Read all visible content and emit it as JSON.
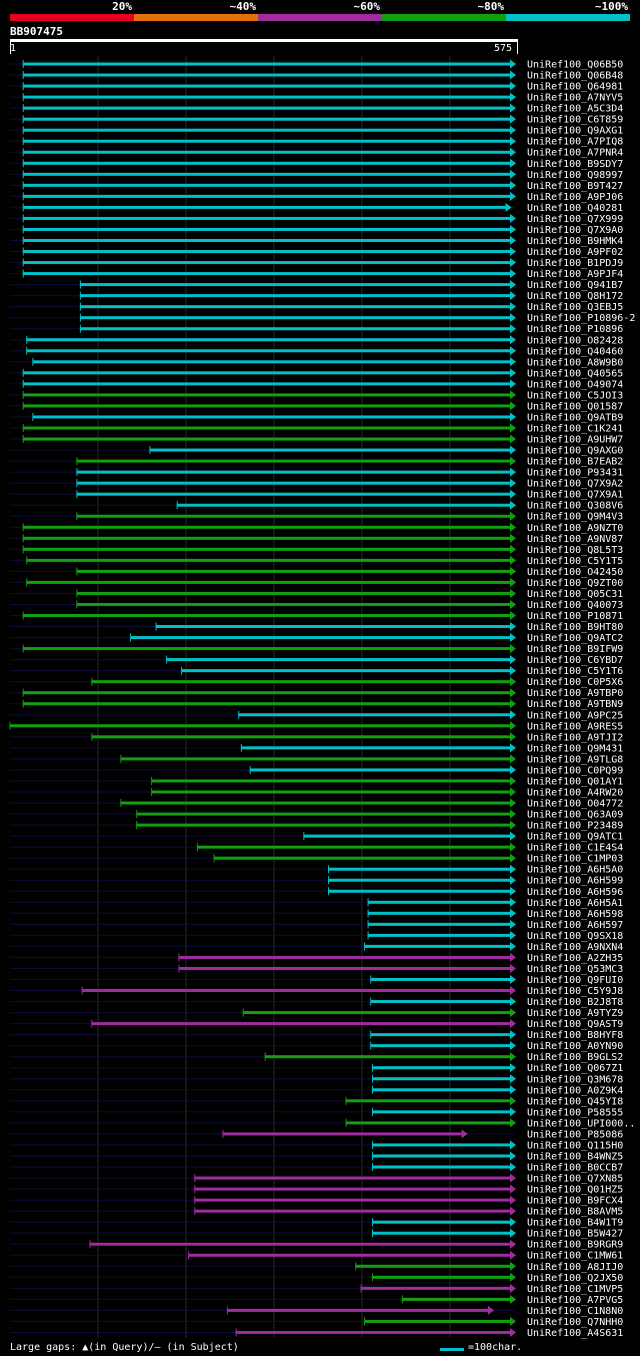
{
  "legend": [
    {
      "label": "20%",
      "color": "#e8001c"
    },
    {
      "label": "~40%",
      "color": "#e07010"
    },
    {
      "label": "~60%",
      "color": "#a02ca0"
    },
    {
      "label": "~80%",
      "color": "#10a010"
    },
    {
      "label": "~100%",
      "color": "#00c0c8"
    }
  ],
  "query": {
    "name": "BB907475",
    "start": "1",
    "end": "575",
    "length": 575
  },
  "footer": {
    "gaps": "Large gaps: ▲(in Query)/— (in Subject)",
    "scale": "=100char."
  },
  "colors": {
    "teal": "#00c0c8",
    "green": "#10a010",
    "purple": "#a02ca0",
    "dim": "#0c0c3a"
  },
  "hits": [
    {
      "name": "UniRef100_Q06B50",
      "start": 16,
      "end": 575,
      "color": "teal"
    },
    {
      "name": "UniRef100_Q06B48",
      "start": 16,
      "end": 575,
      "color": "teal"
    },
    {
      "name": "UniRef100_Q64981",
      "start": 16,
      "end": 575,
      "color": "teal"
    },
    {
      "name": "UniRef100_A7NYV5",
      "start": 16,
      "end": 575,
      "color": "teal"
    },
    {
      "name": "UniRef100_A5C3D4",
      "start": 16,
      "end": 575,
      "color": "teal"
    },
    {
      "name": "UniRef100_C6T859",
      "start": 16,
      "end": 575,
      "color": "teal"
    },
    {
      "name": "UniRef100_Q9AXG1",
      "start": 16,
      "end": 575,
      "color": "teal"
    },
    {
      "name": "UniRef100_A7PIQ8",
      "start": 16,
      "end": 575,
      "color": "teal"
    },
    {
      "name": "UniRef100_A7PNR4",
      "start": 16,
      "end": 575,
      "color": "teal"
    },
    {
      "name": "UniRef100_B9SDY7",
      "start": 16,
      "end": 575,
      "color": "teal"
    },
    {
      "name": "UniRef100_Q98997",
      "start": 16,
      "end": 575,
      "color": "teal"
    },
    {
      "name": "UniRef100_B9T427",
      "start": 16,
      "end": 575,
      "color": "teal"
    },
    {
      "name": "UniRef100_A9PJ06",
      "start": 16,
      "end": 575,
      "color": "teal"
    },
    {
      "name": "UniRef100_Q40281",
      "start": 16,
      "end": 570,
      "color": "teal"
    },
    {
      "name": "UniRef100_Q7X999",
      "start": 16,
      "end": 575,
      "color": "teal"
    },
    {
      "name": "UniRef100_Q7X9A0",
      "start": 16,
      "end": 575,
      "color": "teal"
    },
    {
      "name": "UniRef100_B9HMK4",
      "start": 16,
      "end": 575,
      "color": "teal"
    },
    {
      "name": "UniRef100_A9PF02",
      "start": 16,
      "end": 575,
      "color": "teal"
    },
    {
      "name": "UniRef100_B1PDJ9",
      "start": 16,
      "end": 575,
      "color": "teal"
    },
    {
      "name": "UniRef100_A9PJF4",
      "start": 16,
      "end": 575,
      "color": "teal"
    },
    {
      "name": "UniRef100_Q941B7",
      "start": 81,
      "end": 575,
      "color": "teal"
    },
    {
      "name": "UniRef100_Q8H172",
      "start": 81,
      "end": 575,
      "color": "teal"
    },
    {
      "name": "UniRef100_Q3EBJ5",
      "start": 81,
      "end": 575,
      "color": "teal"
    },
    {
      "name": "UniRef100_P10896-2",
      "start": 81,
      "end": 575,
      "color": "teal"
    },
    {
      "name": "UniRef100_P10896",
      "start": 81,
      "end": 575,
      "color": "teal"
    },
    {
      "name": "UniRef100_O82428",
      "start": 20,
      "end": 575,
      "color": "teal"
    },
    {
      "name": "UniRef100_Q40460",
      "start": 20,
      "end": 575,
      "color": "teal"
    },
    {
      "name": "UniRef100_A8W9B0",
      "start": 27,
      "end": 575,
      "color": "teal"
    },
    {
      "name": "UniRef100_Q40565",
      "start": 16,
      "end": 575,
      "color": "teal"
    },
    {
      "name": "UniRef100_O49074",
      "start": 16,
      "end": 575,
      "color": "teal"
    },
    {
      "name": "UniRef100_C5JOI3",
      "start": 16,
      "end": 575,
      "color": "green"
    },
    {
      "name": "UniRef100_Q01587",
      "start": 16,
      "end": 575,
      "color": "green"
    },
    {
      "name": "UniRef100_Q9ATB9",
      "start": 27,
      "end": 575,
      "color": "teal"
    },
    {
      "name": "UniRef100_C1K241",
      "start": 16,
      "end": 575,
      "color": "green"
    },
    {
      "name": "UniRef100_A9UHW7",
      "start": 16,
      "end": 575,
      "color": "green"
    },
    {
      "name": "UniRef100_Q9AXG0",
      "start": 160,
      "end": 575,
      "color": "teal"
    },
    {
      "name": "UniRef100_B7EAB2",
      "start": 77,
      "end": 575,
      "color": "green"
    },
    {
      "name": "UniRef100_P93431",
      "start": 77,
      "end": 575,
      "color": "teal"
    },
    {
      "name": "UniRef100_Q7X9A2",
      "start": 77,
      "end": 575,
      "color": "teal"
    },
    {
      "name": "UniRef100_Q7X9A1",
      "start": 77,
      "end": 575,
      "color": "teal"
    },
    {
      "name": "UniRef100_Q308V6",
      "start": 191,
      "end": 575,
      "color": "teal"
    },
    {
      "name": "UniRef100_Q9M4V3",
      "start": 77,
      "end": 575,
      "color": "green"
    },
    {
      "name": "UniRef100_A9NZT0",
      "start": 16,
      "end": 575,
      "color": "green"
    },
    {
      "name": "UniRef100_A9NV87",
      "start": 16,
      "end": 575,
      "color": "green"
    },
    {
      "name": "UniRef100_Q8L5T3",
      "start": 16,
      "end": 575,
      "color": "green"
    },
    {
      "name": "UniRef100_C5Y1T5",
      "start": 20,
      "end": 575,
      "color": "green"
    },
    {
      "name": "UniRef100_O42450",
      "start": 77,
      "end": 575,
      "color": "green"
    },
    {
      "name": "UniRef100_Q9ZT00",
      "start": 20,
      "end": 575,
      "color": "green"
    },
    {
      "name": "UniRef100_Q05C31",
      "start": 77,
      "end": 575,
      "color": "green"
    },
    {
      "name": "UniRef100_Q40073",
      "start": 77,
      "end": 575,
      "color": "green"
    },
    {
      "name": "UniRef100_P10871",
      "start": 16,
      "end": 575,
      "color": "green"
    },
    {
      "name": "UniRef100_B9HT80",
      "start": 167,
      "end": 575,
      "color": "teal"
    },
    {
      "name": "UniRef100_Q9ATC2",
      "start": 138,
      "end": 575,
      "color": "teal"
    },
    {
      "name": "UniRef100_B9IFW9",
      "start": 16,
      "end": 575,
      "color": "green"
    },
    {
      "name": "UniRef100_C6YBD7",
      "start": 179,
      "end": 575,
      "color": "teal"
    },
    {
      "name": "UniRef100_C5Y1T6",
      "start": 196,
      "end": 575,
      "color": "teal"
    },
    {
      "name": "UniRef100_C0P5X6",
      "start": 94,
      "end": 575,
      "color": "green"
    },
    {
      "name": "UniRef100_A9TBP0",
      "start": 16,
      "end": 575,
      "color": "green"
    },
    {
      "name": "UniRef100_A9TBN9",
      "start": 16,
      "end": 575,
      "color": "green"
    },
    {
      "name": "UniRef100_A9PC25",
      "start": 261,
      "end": 575,
      "color": "teal"
    },
    {
      "name": "UniRef100_A9RES5",
      "start": 1,
      "end": 575,
      "color": "green"
    },
    {
      "name": "UniRef100_A9TJI2",
      "start": 94,
      "end": 575,
      "color": "green"
    },
    {
      "name": "UniRef100_Q9M431",
      "start": 264,
      "end": 575,
      "color": "teal"
    },
    {
      "name": "UniRef100_A9TLG8",
      "start": 127,
      "end": 575,
      "color": "green"
    },
    {
      "name": "UniRef100_C0PQ99",
      "start": 274,
      "end": 575,
      "color": "teal"
    },
    {
      "name": "UniRef100_Q01AY1",
      "start": 162,
      "end": 575,
      "color": "green"
    },
    {
      "name": "UniRef100_A4RW20",
      "start": 162,
      "end": 575,
      "color": "green"
    },
    {
      "name": "UniRef100_O04772",
      "start": 127,
      "end": 575,
      "color": "green"
    },
    {
      "name": "UniRef100_Q63A09",
      "start": 145,
      "end": 575,
      "color": "green"
    },
    {
      "name": "UniRef100_P23489",
      "start": 145,
      "end": 575,
      "color": "green"
    },
    {
      "name": "UniRef100_Q9ATC1",
      "start": 335,
      "end": 575,
      "color": "teal"
    },
    {
      "name": "UniRef100_C1E4S4",
      "start": 214,
      "end": 575,
      "color": "green"
    },
    {
      "name": "UniRef100_C1MP03",
      "start": 233,
      "end": 575,
      "color": "green"
    },
    {
      "name": "UniRef100_A6H5A0",
      "start": 363,
      "end": 575,
      "color": "teal"
    },
    {
      "name": "UniRef100_A6H599",
      "start": 363,
      "end": 575,
      "color": "teal"
    },
    {
      "name": "UniRef100_A6H596",
      "start": 363,
      "end": 575,
      "color": "teal"
    },
    {
      "name": "UniRef100_A6H5A1",
      "start": 408,
      "end": 575,
      "color": "teal"
    },
    {
      "name": "UniRef100_A6H598",
      "start": 408,
      "end": 575,
      "color": "teal"
    },
    {
      "name": "UniRef100_A6H597",
      "start": 408,
      "end": 575,
      "color": "teal"
    },
    {
      "name": "UniRef100_Q9SX18",
      "start": 408,
      "end": 575,
      "color": "teal"
    },
    {
      "name": "UniRef100_A9NXN4",
      "start": 404,
      "end": 575,
      "color": "teal"
    },
    {
      "name": "UniRef100_A2ZH35",
      "start": 193,
      "end": 575,
      "color": "purple"
    },
    {
      "name": "UniRef100_Q53MC3",
      "start": 193,
      "end": 575,
      "color": "purple"
    },
    {
      "name": "UniRef100_Q9FUI0",
      "start": 411,
      "end": 575,
      "color": "teal"
    },
    {
      "name": "UniRef100_C5Y9J8",
      "start": 83,
      "end": 575,
      "color": "purple"
    },
    {
      "name": "UniRef100_B2J8T8",
      "start": 411,
      "end": 575,
      "color": "teal"
    },
    {
      "name": "UniRef100_A9TYZ9",
      "start": 266,
      "end": 575,
      "color": "green"
    },
    {
      "name": "UniRef100_Q9AST9",
      "start": 94,
      "end": 575,
      "color": "purple"
    },
    {
      "name": "UniRef100_B8HYF8",
      "start": 411,
      "end": 575,
      "color": "teal"
    },
    {
      "name": "UniRef100_A0YN90",
      "start": 411,
      "end": 575,
      "color": "teal"
    },
    {
      "name": "UniRef100_B9GLS2",
      "start": 291,
      "end": 575,
      "color": "green"
    },
    {
      "name": "UniRef100_Q067Z1",
      "start": 413,
      "end": 575,
      "color": "teal"
    },
    {
      "name": "UniRef100_Q3M678",
      "start": 413,
      "end": 575,
      "color": "teal"
    },
    {
      "name": "UniRef100_A0Z9K4",
      "start": 413,
      "end": 575,
      "color": "teal"
    },
    {
      "name": "UniRef100_Q45YI8",
      "start": 383,
      "end": 575,
      "color": "green"
    },
    {
      "name": "UniRef100_P58555",
      "start": 413,
      "end": 575,
      "color": "teal"
    },
    {
      "name": "UniRef100_UPI000..",
      "start": 383,
      "end": 575,
      "color": "green"
    },
    {
      "name": "UniRef100_P85086",
      "start": 243,
      "end": 520,
      "color": "purple"
    },
    {
      "name": "UniRef100_Q115H0",
      "start": 413,
      "end": 575,
      "color": "teal"
    },
    {
      "name": "UniRef100_B4WNZ5",
      "start": 413,
      "end": 575,
      "color": "teal"
    },
    {
      "name": "UniRef100_B0CCB7",
      "start": 413,
      "end": 575,
      "color": "teal"
    },
    {
      "name": "UniRef100_Q7XN85",
      "start": 211,
      "end": 575,
      "color": "purple"
    },
    {
      "name": "UniRef100_Q01HZ5",
      "start": 211,
      "end": 575,
      "color": "purple"
    },
    {
      "name": "UniRef100_B9FCX4",
      "start": 211,
      "end": 575,
      "color": "purple"
    },
    {
      "name": "UniRef100_B8AVM5",
      "start": 211,
      "end": 575,
      "color": "purple"
    },
    {
      "name": "UniRef100_B4W1T9",
      "start": 413,
      "end": 575,
      "color": "teal"
    },
    {
      "name": "UniRef100_B5W427",
      "start": 413,
      "end": 575,
      "color": "teal"
    },
    {
      "name": "UniRef100_B9RGR9",
      "start": 92,
      "end": 575,
      "color": "purple"
    },
    {
      "name": "UniRef100_C1MW61",
      "start": 204,
      "end": 575,
      "color": "purple"
    },
    {
      "name": "UniRef100_A8JIJ0",
      "start": 394,
      "end": 575,
      "color": "green"
    },
    {
      "name": "UniRef100_Q2JX50",
      "start": 413,
      "end": 575,
      "color": "green"
    },
    {
      "name": "UniRef100_C1MVP5",
      "start": 400,
      "end": 575,
      "color": "purple"
    },
    {
      "name": "UniRef100_A7PVG5",
      "start": 447,
      "end": 575,
      "color": "green"
    },
    {
      "name": "UniRef100_C1N8N0",
      "start": 248,
      "end": 550,
      "color": "purple"
    },
    {
      "name": "UniRef100_Q7NHH0",
      "start": 404,
      "end": 575,
      "color": "green"
    },
    {
      "name": "UniRef100_A4S631",
      "start": 258,
      "end": 575,
      "color": "purple"
    }
  ]
}
